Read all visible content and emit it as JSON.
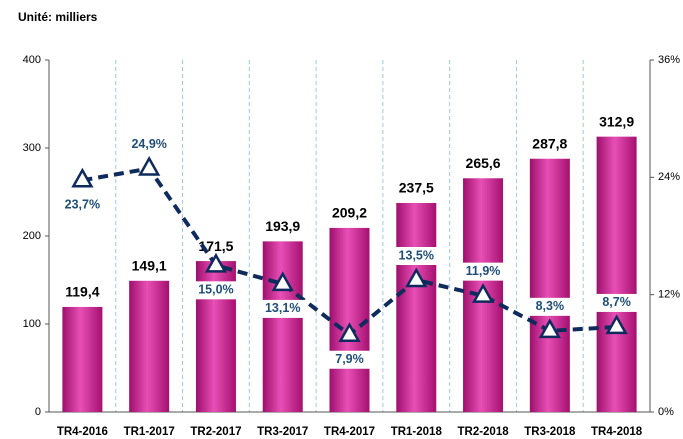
{
  "chart_data": {
    "type": "bar",
    "subtitle": "Unité: milliers",
    "categories": [
      "TR4-2016",
      "TR1-2017",
      "TR2-2017",
      "TR3-2017",
      "TR4-2017",
      "TR1-2018",
      "TR2-2018",
      "TR3-2018",
      "TR4-2018"
    ],
    "series": [
      {
        "color": "#cc1f8f",
        "values": [
          119.4,
          149.1,
          171.5,
          193.9,
          209.2,
          237.5,
          265.6,
          287.8,
          312.9
        ],
        "value_labels": [
          "119,4",
          "149,1",
          "171,5",
          "193,9",
          "209,2",
          "237,5",
          "265,6",
          "287,8",
          "312,9"
        ]
      },
      {
        "type": "line",
        "axis": "y2",
        "color": "#0f2a5c",
        "values": [
          23.7,
          24.9,
          15.0,
          13.1,
          7.9,
          13.5,
          11.9,
          8.3,
          8.7
        ],
        "value_labels": [
          "23,7%",
          "24,9%",
          "15,0%",
          "13,1%",
          "7,9%",
          "13,5%",
          "11,9%",
          "8,3%",
          "8,7%"
        ]
      }
    ],
    "ylim": [
      0,
      400
    ],
    "yticks": [
      0,
      100,
      200,
      300,
      400
    ],
    "y2lim": [
      0,
      36
    ],
    "y2ticks": [
      {
        "value": 0,
        "label": "0%"
      },
      {
        "value": 12,
        "label": "12%"
      },
      {
        "value": 24,
        "label": "24%"
      },
      {
        "value": 36,
        "label": "36%"
      }
    ]
  }
}
